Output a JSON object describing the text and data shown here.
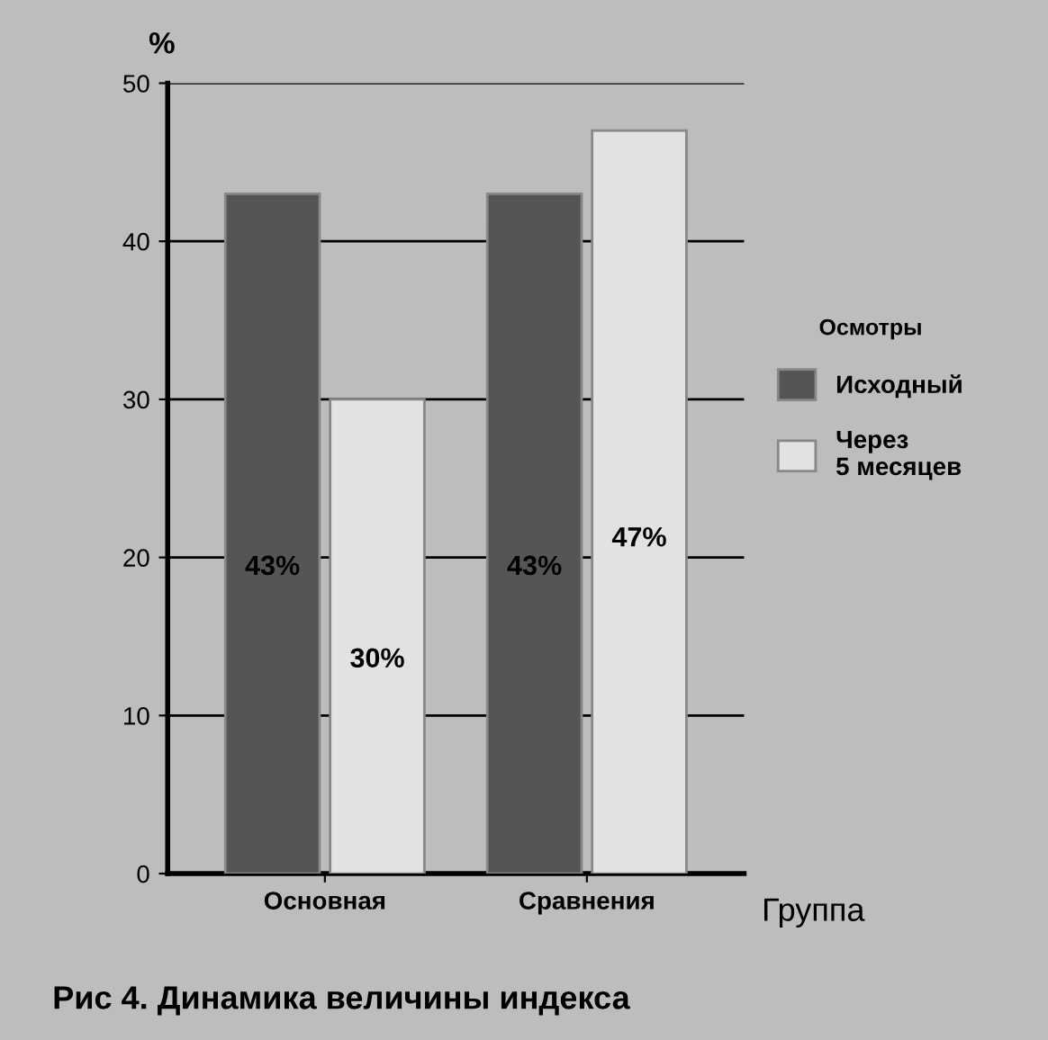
{
  "chart_data": {
    "type": "bar",
    "title": "Рис 4. Динамика величины индекса",
    "xlabel": "Группа",
    "ylabel": "%",
    "legend_title": "Осмотры",
    "categories": [
      "Основная",
      "Сравнения"
    ],
    "series": [
      {
        "name": "Исходный",
        "color": "#555555",
        "values": [
          43,
          43
        ],
        "value_labels": [
          "43%",
          "43%"
        ]
      },
      {
        "name": "Через\n5 месяцев",
        "color": "#e2e2e2",
        "values": [
          30,
          47
        ],
        "value_labels": [
          "30%",
          "47%"
        ]
      }
    ],
    "ylim": [
      0,
      50
    ],
    "yticks": [
      0,
      10,
      20,
      30,
      40,
      50
    ],
    "grid": "y",
    "legend": "right"
  }
}
